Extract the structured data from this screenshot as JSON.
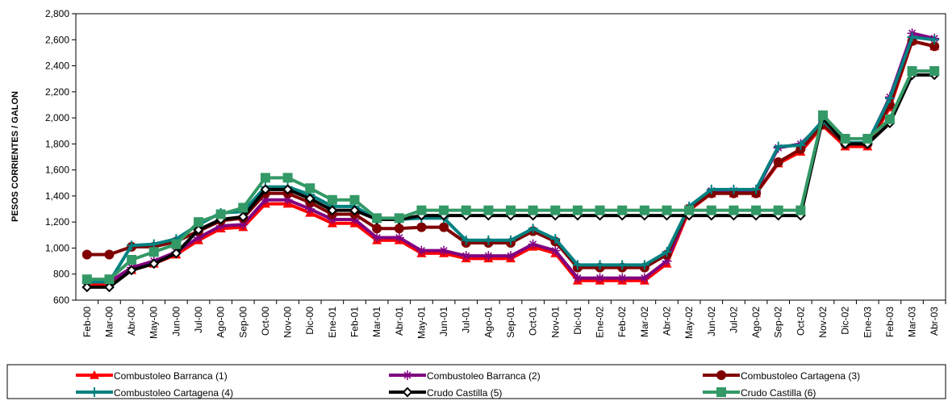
{
  "chart_data": {
    "type": "line",
    "y_label": "PESOS CORRIENTES / GALON",
    "categories": [
      "Feb-00",
      "Mar-00",
      "Abr-00",
      "May-00",
      "Jun-00",
      "Jul-00",
      "Ago-00",
      "Sep-00",
      "Oct-00",
      "Nov-00",
      "Dic-00",
      "Ene-01",
      "Feb-01",
      "Mar-01",
      "Abr-01",
      "May-01",
      "Jun-01",
      "Jul-01",
      "Ago-01",
      "Sep-01",
      "Oct-01",
      "Nov-01",
      "Dic-01",
      "Ene-02",
      "Feb-02",
      "Mar-02",
      "Abr-02",
      "May-02",
      "Jun-02",
      "Jul-02",
      "Ago-02",
      "Sep-02",
      "Oct-02",
      "Nov-02",
      "Dic-02",
      "Ene-03",
      "Feb-03",
      "Mar-03",
      "Abr-03"
    ],
    "series": [
      {
        "name": "Combustoleo Barranca (1)",
        "color": "#ff0000",
        "marker": "triangle",
        "values": [
          720,
          720,
          830,
          880,
          950,
          1060,
          1150,
          1160,
          1340,
          1340,
          1270,
          1190,
          1190,
          1060,
          1060,
          960,
          960,
          920,
          920,
          920,
          1010,
          960,
          750,
          750,
          750,
          750,
          880,
          1290,
          1420,
          1420,
          1420,
          1650,
          1740,
          1940,
          1780,
          1780,
          2080,
          2590,
          2550
        ]
      },
      {
        "name": "Combustoleo Barranca (2)",
        "color": "#800080",
        "marker": "star",
        "values": [
          740,
          740,
          850,
          900,
          970,
          1080,
          1170,
          1180,
          1370,
          1370,
          1300,
          1220,
          1220,
          1080,
          1080,
          980,
          980,
          940,
          940,
          940,
          1030,
          980,
          770,
          770,
          770,
          770,
          900,
          1310,
          1440,
          1440,
          1440,
          1770,
          1800,
          1960,
          1800,
          1800,
          2160,
          2650,
          2610
        ]
      },
      {
        "name": "Combustoleo Cartagena (3)",
        "color": "#800000",
        "marker": "circle",
        "values": [
          950,
          950,
          1010,
          1010,
          1050,
          1130,
          1210,
          1230,
          1420,
          1420,
          1350,
          1260,
          1260,
          1150,
          1150,
          1160,
          1160,
          1040,
          1040,
          1040,
          1130,
          1050,
          850,
          850,
          850,
          850,
          950,
          1300,
          1420,
          1420,
          1420,
          1660,
          1760,
          1950,
          1800,
          1800,
          2100,
          2590,
          2550
        ]
      },
      {
        "name": "Combustoleo Cartagena (4)",
        "color": "#008080",
        "marker": "plus",
        "values": [
          740,
          740,
          1020,
          1030,
          1070,
          1180,
          1270,
          1280,
          1470,
          1470,
          1410,
          1320,
          1320,
          1220,
          1220,
          1230,
          1230,
          1060,
          1060,
          1060,
          1150,
          1070,
          870,
          870,
          870,
          870,
          970,
          1320,
          1450,
          1450,
          1450,
          1780,
          1790,
          1980,
          1810,
          1810,
          2150,
          2620,
          2600
        ]
      },
      {
        "name": "Crudo Castilla (5)",
        "color": "#000000",
        "marker": "diamond",
        "values": [
          700,
          700,
          830,
          880,
          960,
          1140,
          1220,
          1240,
          1450,
          1450,
          1380,
          1290,
          1290,
          1220,
          1220,
          1250,
          1250,
          1250,
          1250,
          1250,
          1250,
          1250,
          1250,
          1250,
          1250,
          1250,
          1250,
          1250,
          1250,
          1250,
          1250,
          1250,
          1250,
          2000,
          1800,
          1800,
          1960,
          2330,
          2330
        ]
      },
      {
        "name": "Crudo Castilla (6)",
        "color": "#339966",
        "marker": "square",
        "values": [
          760,
          760,
          910,
          970,
          1030,
          1200,
          1260,
          1310,
          1540,
          1540,
          1460,
          1370,
          1370,
          1230,
          1230,
          1290,
          1290,
          1290,
          1290,
          1290,
          1290,
          1290,
          1290,
          1290,
          1290,
          1290,
          1290,
          1290,
          1290,
          1290,
          1290,
          1290,
          1290,
          2020,
          1840,
          1840,
          1990,
          2360,
          2360
        ]
      }
    ],
    "ylim": [
      600,
      2800
    ],
    "yticks": [
      600,
      800,
      {
        "value": 1000,
        "label": "1,000"
      },
      {
        "value": 1200,
        "label": "1,200"
      },
      {
        "value": 1400,
        "label": "1,400"
      },
      {
        "value": 1600,
        "label": "1,600"
      },
      {
        "value": 1800,
        "label": "1,800"
      },
      {
        "value": 2000,
        "label": "2,000"
      },
      {
        "value": 2200,
        "label": "2,200"
      },
      {
        "value": 2400,
        "label": "2,400"
      },
      {
        "value": 2600,
        "label": "2,600"
      },
      {
        "value": 2800,
        "label": "2,800"
      }
    ],
    "grid": false,
    "legend": "bottom"
  }
}
